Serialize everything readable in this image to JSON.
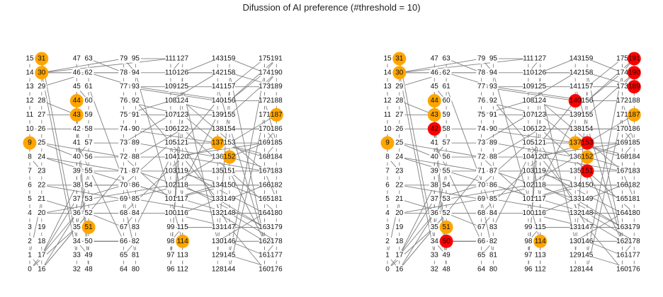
{
  "title": "Difussion of AI preference (#threshold = 10)",
  "node_count": 192,
  "colors": {
    "edge": "#808080",
    "adopted_seed": "#FFA500",
    "adopted_new": "#FF0000"
  },
  "chain_edges": true,
  "edges": [
    [
      14,
      30
    ],
    [
      30,
      46
    ],
    [
      46,
      62
    ],
    [
      62,
      78
    ],
    [
      78,
      94
    ],
    [
      94,
      110
    ],
    [
      110,
      126
    ],
    [
      126,
      142
    ],
    [
      30,
      78
    ],
    [
      30,
      79
    ],
    [
      29,
      62
    ],
    [
      30,
      111
    ],
    [
      10,
      26
    ],
    [
      26,
      42
    ],
    [
      42,
      58
    ],
    [
      58,
      74
    ],
    [
      74,
      90
    ],
    [
      90,
      106
    ],
    [
      106,
      122
    ],
    [
      122,
      138
    ],
    [
      138,
      154
    ],
    [
      154,
      170
    ],
    [
      9,
      25
    ],
    [
      25,
      40
    ],
    [
      25,
      72
    ],
    [
      24,
      55
    ],
    [
      24,
      71
    ],
    [
      22,
      38
    ],
    [
      22,
      69
    ],
    [
      21,
      52
    ],
    [
      20,
      69
    ],
    [
      20,
      100
    ],
    [
      0,
      17
    ],
    [
      0,
      35
    ],
    [
      1,
      16
    ],
    [
      16,
      36
    ],
    [
      16,
      52
    ],
    [
      17,
      37
    ],
    [
      17,
      53
    ],
    [
      16,
      71
    ],
    [
      17,
      38
    ],
    [
      1,
      21
    ],
    [
      31,
      34
    ],
    [
      30,
      33
    ],
    [
      28,
      43
    ],
    [
      27,
      59
    ],
    [
      13,
      10
    ],
    [
      8,
      23
    ],
    [
      7,
      4
    ],
    [
      12,
      8
    ],
    [
      45,
      35
    ],
    [
      44,
      33
    ],
    [
      43,
      49
    ],
    [
      42,
      48
    ],
    [
      41,
      66
    ],
    [
      40,
      57
    ],
    [
      39,
      87
    ],
    [
      38,
      86
    ],
    [
      37,
      70
    ],
    [
      36,
      84
    ],
    [
      35,
      55
    ],
    [
      34,
      82
    ],
    [
      34,
      66
    ],
    [
      52,
      67
    ],
    [
      53,
      102
    ],
    [
      54,
      86
    ],
    [
      55,
      117
    ],
    [
      56,
      104
    ],
    [
      57,
      89
    ],
    [
      60,
      45
    ],
    [
      61,
      84
    ],
    [
      62,
      93
    ],
    [
      63,
      78
    ],
    [
      49,
      34
    ],
    [
      50,
      82
    ],
    [
      73,
      107
    ],
    [
      72,
      101
    ],
    [
      71,
      119
    ],
    [
      70,
      105
    ],
    [
      69,
      118
    ],
    [
      68,
      120
    ],
    [
      67,
      84
    ],
    [
      66,
      82
    ],
    [
      65,
      82
    ],
    [
      77,
      93
    ],
    [
      77,
      140
    ],
    [
      76,
      123
    ],
    [
      75,
      108
    ],
    [
      74,
      137
    ],
    [
      79,
      94
    ],
    [
      94,
      114
    ],
    [
      93,
      156
    ],
    [
      92,
      133
    ],
    [
      91,
      107
    ],
    [
      89,
      136
    ],
    [
      88,
      122
    ],
    [
      87,
      133
    ],
    [
      86,
      148
    ],
    [
      85,
      132
    ],
    [
      83,
      104
    ],
    [
      81,
      69
    ],
    [
      95,
      111
    ],
    [
      109,
      93
    ],
    [
      108,
      155
    ],
    [
      107,
      139
    ],
    [
      106,
      104
    ],
    [
      105,
      153
    ],
    [
      104,
      169
    ],
    [
      103,
      135
    ],
    [
      102,
      166
    ],
    [
      101,
      150
    ],
    [
      100,
      147
    ],
    [
      99,
      131
    ],
    [
      98,
      115
    ],
    [
      97,
      123
    ],
    [
      96,
      126
    ],
    [
      127,
      110
    ],
    [
      126,
      142
    ],
    [
      125,
      130
    ],
    [
      124,
      167
    ],
    [
      123,
      137
    ],
    [
      122,
      180
    ],
    [
      121,
      147
    ],
    [
      120,
      153
    ],
    [
      119,
      164
    ],
    [
      118,
      163
    ],
    [
      117,
      105
    ],
    [
      116,
      133
    ],
    [
      115,
      120
    ],
    [
      112,
      116
    ],
    [
      143,
      126
    ],
    [
      142,
      108
    ],
    [
      141,
      125
    ],
    [
      140,
      104
    ],
    [
      139,
      118
    ],
    [
      138,
      122
    ],
    [
      137,
      153
    ],
    [
      136,
      102
    ],
    [
      135,
      151
    ],
    [
      134,
      101
    ],
    [
      133,
      163
    ],
    [
      132,
      162
    ],
    [
      131,
      147
    ],
    [
      130,
      164
    ],
    [
      129,
      157
    ],
    [
      159,
      174
    ],
    [
      158,
      162
    ],
    [
      157,
      175
    ],
    [
      156,
      191
    ],
    [
      155,
      190
    ],
    [
      154,
      186
    ],
    [
      153,
      169
    ],
    [
      152,
      183
    ],
    [
      151,
      162
    ],
    [
      150,
      103
    ],
    [
      149,
      166
    ],
    [
      148,
      178
    ],
    [
      147,
      163
    ],
    [
      146,
      161
    ],
    [
      145,
      174
    ],
    [
      144,
      171
    ],
    [
      175,
      160
    ],
    [
      174,
      156
    ],
    [
      173,
      157
    ],
    [
      172,
      185
    ],
    [
      171,
      187
    ],
    [
      170,
      185
    ],
    [
      169,
      152
    ],
    [
      168,
      137
    ],
    [
      167,
      120
    ],
    [
      166,
      134
    ],
    [
      165,
      150
    ],
    [
      164,
      148
    ],
    [
      163,
      131
    ],
    [
      162,
      141
    ],
    [
      161,
      178
    ],
    [
      160,
      147
    ],
    [
      191,
      174
    ],
    [
      190,
      173
    ],
    [
      189,
      158
    ],
    [
      188,
      140
    ],
    [
      187,
      153
    ],
    [
      186,
      169
    ],
    [
      185,
      168
    ],
    [
      184,
      137
    ],
    [
      183,
      151
    ],
    [
      182,
      181
    ],
    [
      181,
      167
    ],
    [
      180,
      132
    ],
    [
      179,
      115
    ],
    [
      178,
      146
    ],
    [
      177,
      161
    ],
    [
      176,
      145
    ]
  ],
  "panels": [
    {
      "orange": [
        9,
        30,
        31,
        43,
        44,
        51,
        114,
        137,
        152,
        187
      ],
      "red": []
    },
    {
      "orange": [
        9,
        30,
        31,
        43,
        44,
        51,
        114,
        137,
        152,
        187
      ],
      "red": [
        42,
        50,
        140,
        151,
        153,
        189,
        190,
        191
      ]
    }
  ]
}
